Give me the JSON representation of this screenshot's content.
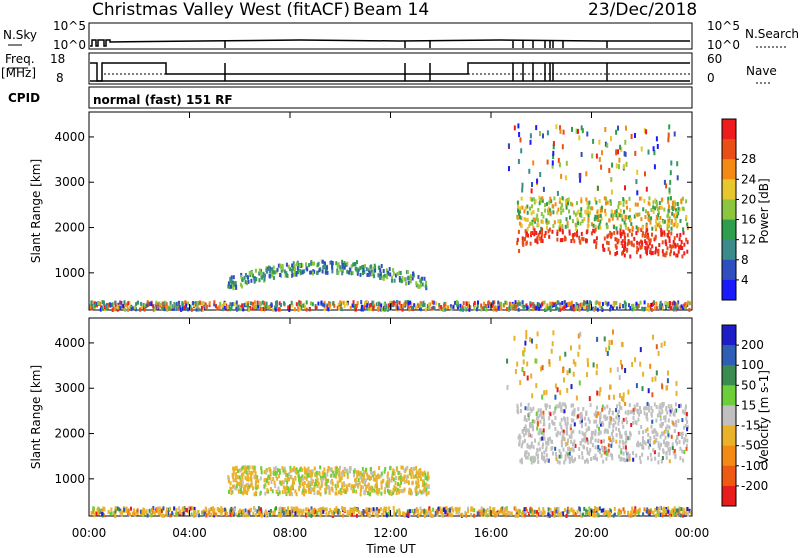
{
  "header": {
    "station": "Christmas Valley West (fitACF)",
    "beam": "Beam 14",
    "date": "23/Dec/2018"
  },
  "status_panels": {
    "nsky_label": "N.Sky",
    "nsearch_label": "N.Search",
    "nsky_ticks": [
      "10^5",
      "10^0"
    ],
    "nsearch_ticks": [
      "10^5",
      "10^0"
    ],
    "freq_label": "Freq.",
    "freq_unit": "[MHz]",
    "freq_ticks": [
      "18",
      "8"
    ],
    "nave_label": "Nave",
    "nave_ticks": [
      "60",
      "0"
    ],
    "cpid_label": "CPID",
    "cpid_text": "normal (fast) 151 RF"
  },
  "chart_data": [
    {
      "type": "heatmap",
      "name": "power",
      "ylabel": "Slant Range [km]",
      "yticks": [
        "1000",
        "2000",
        "3000",
        "4000"
      ],
      "ylim": [
        180,
        4550
      ],
      "colorbar_label": "Power [dB]",
      "colorbar_ticks": [
        "4",
        "8",
        "12",
        "16",
        "20",
        "24",
        "28"
      ],
      "colorbar_colors": [
        "#1a1aff",
        "#2f4fbf",
        "#3c8b8b",
        "#2e9e4e",
        "#8cc540",
        "#e7c62e",
        "#f28a14",
        "#e94e16",
        "#ee1c1c"
      ],
      "regions": [
        {
          "t0": 0.0,
          "t1": 24.0,
          "r0": 220,
          "r1": 400,
          "level": "mixed-low"
        },
        {
          "t0": 5.5,
          "t1": 13.5,
          "r0": 700,
          "r1": 1300,
          "level": "mid"
        },
        {
          "t0": 17.0,
          "t1": 23.8,
          "r0": 1400,
          "r1": 2700,
          "level": "high"
        },
        {
          "t0": 16.5,
          "t1": 23.5,
          "r0": 2800,
          "r1": 4300,
          "level": "sparse"
        }
      ]
    },
    {
      "type": "heatmap",
      "name": "velocity",
      "ylabel": "Slant Range [km]",
      "yticks": [
        "1000",
        "2000",
        "3000",
        "4000"
      ],
      "ylim": [
        180,
        4550
      ],
      "xlabel": "Time UT",
      "xticks": [
        "00:00",
        "04:00",
        "08:00",
        "12:00",
        "16:00",
        "20:00",
        "00:00"
      ],
      "xlim": [
        0,
        24
      ],
      "colorbar_label": "Velocity [m s-1]",
      "colorbar_ticks": [
        "200",
        "100",
        "50",
        "15",
        "-15",
        "-50",
        "-100",
        "-200"
      ],
      "colorbar_colors": [
        "#1e1ec8",
        "#2e5fb5",
        "#3c8b50",
        "#6ccf3a",
        "#c0c0c0",
        "#e9b22a",
        "#f28a14",
        "#ee5a14",
        "#e81c1c"
      ],
      "regions": [
        {
          "t0": 0.0,
          "t1": 24.0,
          "r0": 220,
          "r1": 400,
          "level": "mixed-low"
        },
        {
          "t0": 5.5,
          "t1": 13.5,
          "r0": 700,
          "r1": 1300,
          "level": "neg-low"
        },
        {
          "t0": 17.0,
          "t1": 23.8,
          "r0": 1400,
          "r1": 2700,
          "level": "near-zero"
        },
        {
          "t0": 16.5,
          "t1": 23.5,
          "r0": 2800,
          "r1": 4300,
          "level": "sparse"
        }
      ]
    }
  ]
}
